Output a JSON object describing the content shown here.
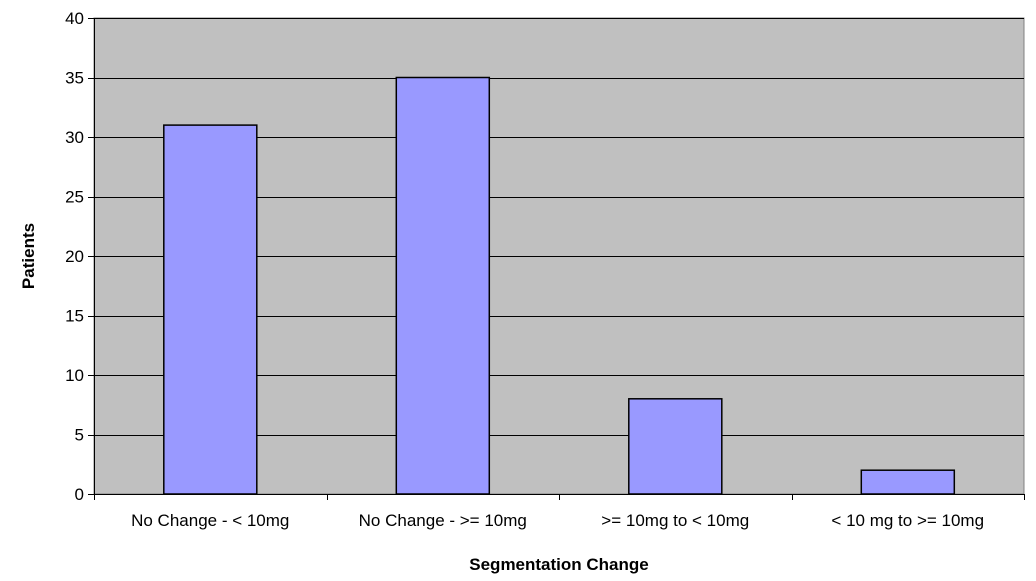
{
  "chart_data": {
    "type": "bar",
    "title": "",
    "xlabel": "Segmentation Change",
    "ylabel": "Patients",
    "categories": [
      "No Change - < 10mg",
      "No Change - >= 10mg",
      ">= 10mg to < 10mg",
      "< 10 mg to >= 10mg"
    ],
    "values": [
      31,
      35,
      8,
      2
    ],
    "ylim": [
      0,
      40
    ],
    "yticks": [
      0,
      5,
      10,
      15,
      20,
      25,
      30,
      35,
      40
    ],
    "grid": true,
    "legend": "none",
    "colors": {
      "plot_background": "#C0C0C0",
      "bar_fill": "#9999FF",
      "bar_stroke": "#000000",
      "gridline": "#000000"
    }
  }
}
